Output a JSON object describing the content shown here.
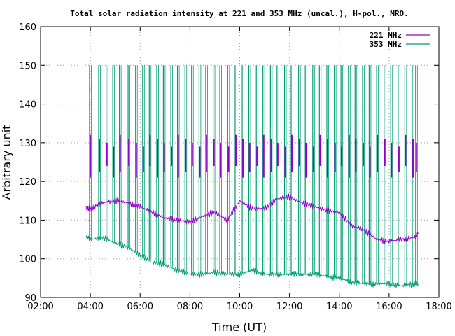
{
  "chart_data": {
    "type": "line",
    "title": "Total solar radiation intensity at 221 and 353 MHz (uncal.), H-pol., MRO.",
    "xlabel": "Time (UT)",
    "ylabel": "Arbitrary unit",
    "xlim": [
      "02:00",
      "18:00"
    ],
    "ylim": [
      90,
      160
    ],
    "x_ticks": [
      "02:00",
      "04:00",
      "06:00",
      "08:00",
      "10:00",
      "12:00",
      "14:00",
      "16:00",
      "18:00"
    ],
    "y_ticks": [
      90,
      100,
      110,
      120,
      130,
      140,
      150,
      160
    ],
    "grid": true,
    "legend_position": "top-right",
    "series": [
      {
        "name": "221 MHz",
        "color": "#9400d3",
        "x": [
          "03:50",
          "04:00",
          "04:30",
          "05:00",
          "05:30",
          "06:00",
          "06:30",
          "07:00",
          "07:30",
          "08:00",
          "08:30",
          "09:00",
          "09:30",
          "10:00",
          "10:30",
          "11:00",
          "11:30",
          "12:00",
          "12:30",
          "13:00",
          "13:30",
          "14:00",
          "14:30",
          "15:00",
          "15:30",
          "16:00",
          "16:30",
          "17:00",
          "17:10"
        ],
        "values": [
          113,
          113,
          114.5,
          115,
          114.5,
          113.5,
          112,
          110.5,
          110,
          109.5,
          111,
          112,
          110,
          115,
          113,
          113,
          115.5,
          116,
          114.5,
          113.5,
          112.5,
          112,
          108.5,
          107.5,
          105,
          104.5,
          105,
          105.5,
          106.5
        ],
        "burst_peak": 132
      },
      {
        "name": "353 MHz",
        "color": "#009e73",
        "x": [
          "03:50",
          "04:00",
          "04:30",
          "05:00",
          "05:30",
          "06:00",
          "06:30",
          "07:00",
          "07:30",
          "08:00",
          "08:30",
          "09:00",
          "09:30",
          "10:00",
          "10:30",
          "11:00",
          "11:30",
          "12:00",
          "12:30",
          "13:00",
          "13:30",
          "14:00",
          "14:30",
          "15:00",
          "15:30",
          "16:00",
          "16:30",
          "17:00",
          "17:10"
        ],
        "values": [
          106,
          105,
          105.5,
          104,
          103,
          101,
          99,
          98.5,
          97,
          96,
          96,
          96.5,
          96,
          96,
          97,
          96,
          96,
          96,
          96,
          96,
          95.5,
          95,
          94,
          93.5,
          93.5,
          93.5,
          93,
          93.5,
          93.5
        ],
        "burst_peak": 150
      }
    ],
    "calibration_spikes": [
      "03:58",
      "04:20",
      "04:38",
      "04:54",
      "05:10",
      "05:31",
      "05:49",
      "06:06",
      "06:22",
      "06:40",
      "06:56",
      "07:14",
      "07:30",
      "07:48",
      "08:04",
      "08:22",
      "08:38",
      "08:56",
      "09:12",
      "09:31",
      "09:49",
      "10:06",
      "10:22",
      "10:40",
      "10:56",
      "11:14",
      "11:30",
      "11:48",
      "12:04",
      "12:22",
      "12:38",
      "12:56",
      "13:12",
      "13:30",
      "13:48",
      "14:04",
      "14:22",
      "14:38",
      "14:56",
      "15:12",
      "15:30",
      "15:48",
      "16:04",
      "16:22",
      "16:38",
      "16:56",
      "17:04"
    ]
  }
}
